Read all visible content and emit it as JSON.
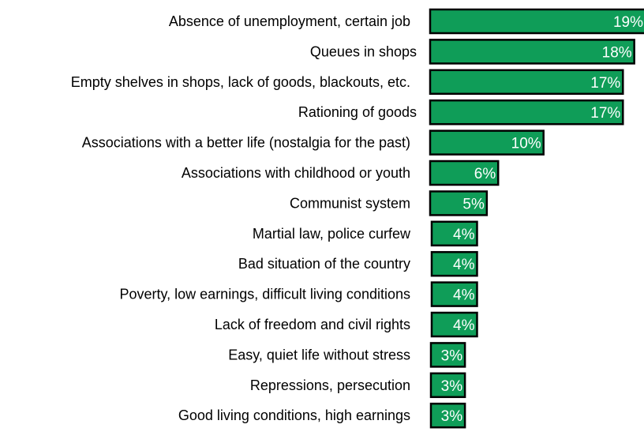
{
  "chart_data": {
    "type": "bar",
    "orientation": "horizontal",
    "categories": [
      "Absence of unemployment, certain job",
      "Queues in shops",
      "Empty shelves in shops, lack of goods, blackouts, etc.",
      "Rationing of goods",
      "Associations with a better life (nostalgia for the past)",
      "Associations with childhood or youth",
      "Communist system",
      "Martial law, police curfew",
      "Bad situation of the country",
      "Poverty, low earnings, difficult living conditions",
      "Lack of freedom and civil rights",
      "Easy, quiet life without stress",
      "Repressions, persecution",
      "Good living conditions, high earnings"
    ],
    "values": [
      19,
      18,
      17,
      17,
      10,
      6,
      5,
      4,
      4,
      4,
      4,
      3,
      3,
      3
    ],
    "value_labels": [
      "19%",
      "18%",
      "17%",
      "17%",
      "10%",
      "6%",
      "5%",
      "4%",
      "4%",
      "4%",
      "4%",
      "3%",
      "3%",
      "3%"
    ],
    "unit": "%",
    "bar_color": "#0f9d58",
    "bar_border_color": "#000000",
    "label_color": "#ffffff",
    "grid": false,
    "legend": "none"
  }
}
